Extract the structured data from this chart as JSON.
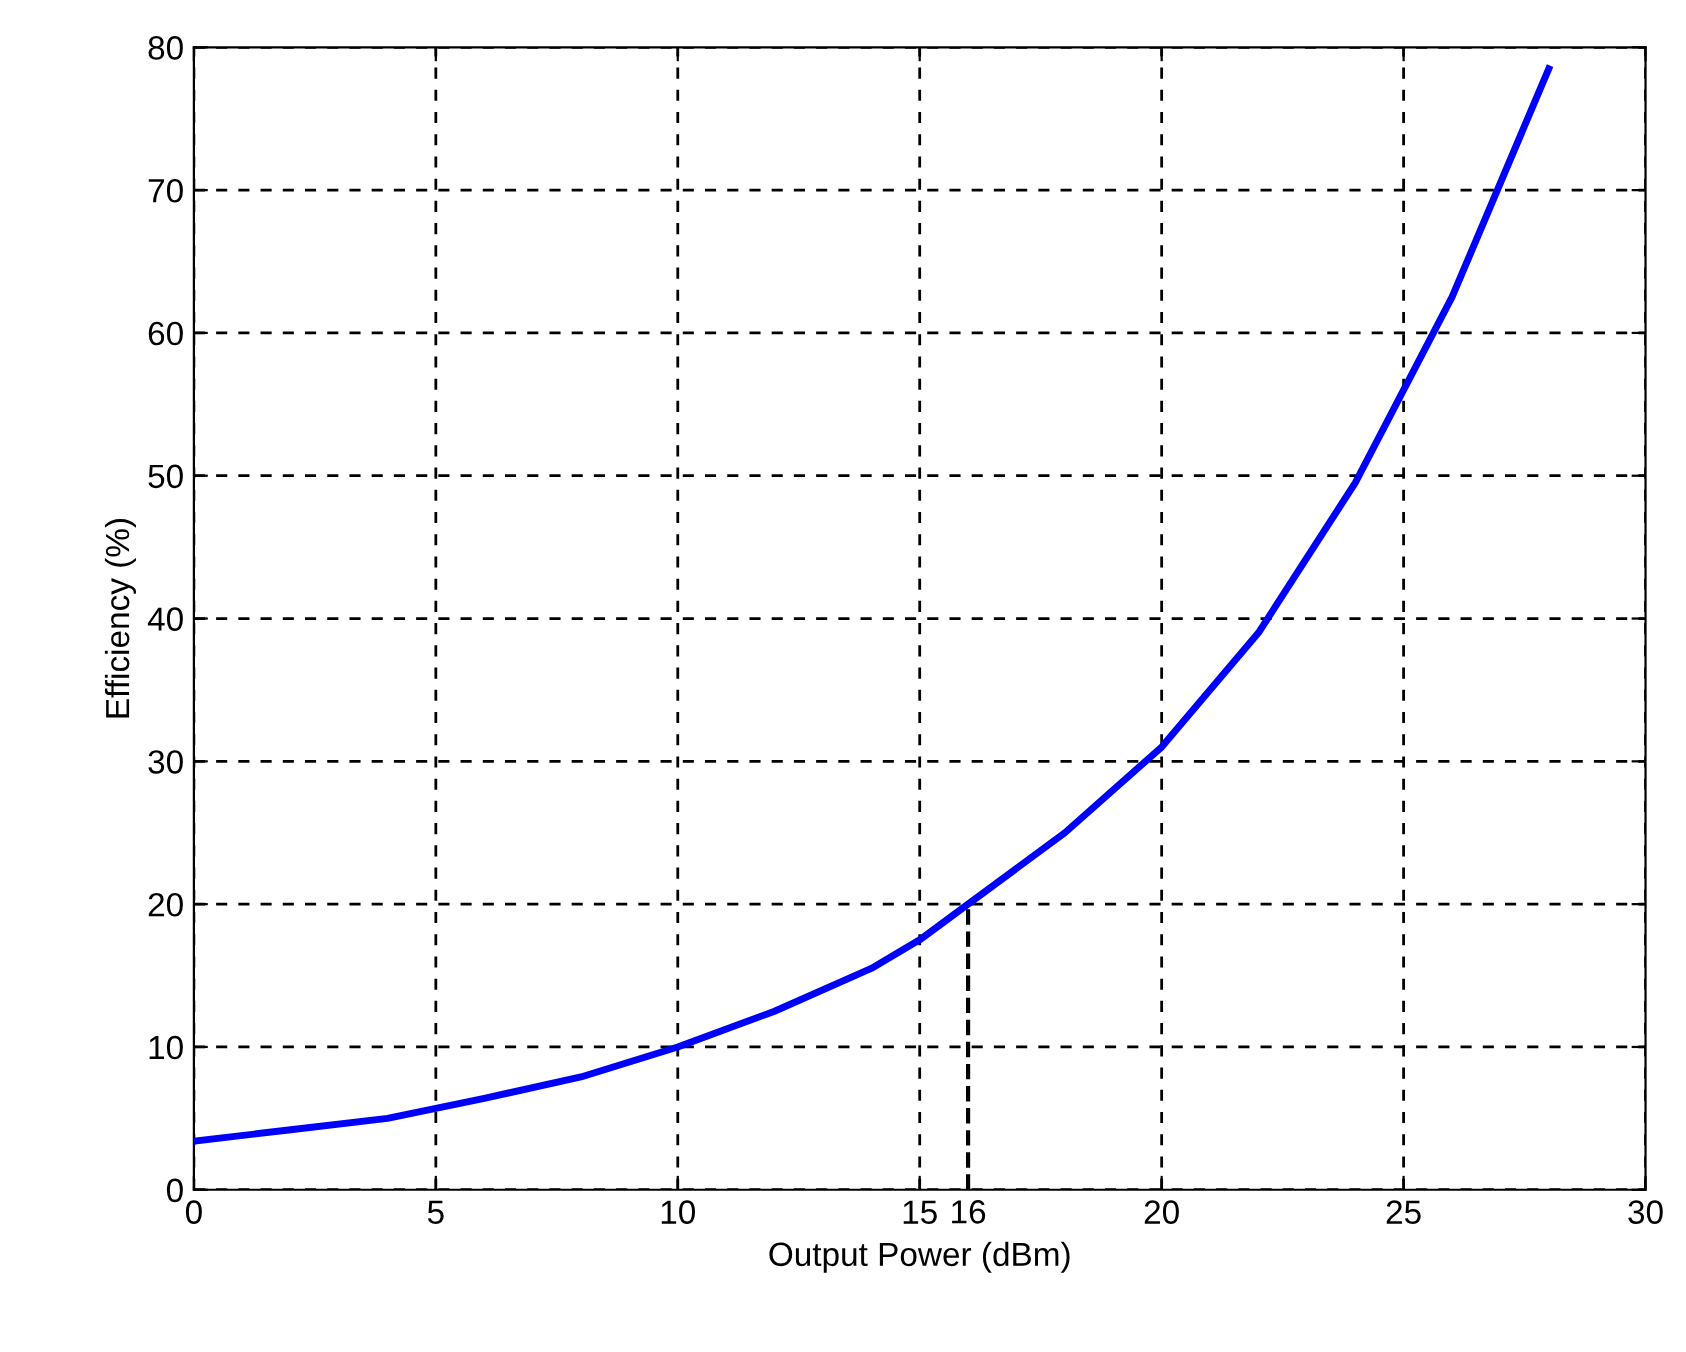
{
  "chart_data": {
    "type": "line",
    "xlabel": "Output Power (dBm)",
    "ylabel": "Efficiency (%)",
    "xlim": [
      0,
      30
    ],
    "ylim": [
      0,
      80
    ],
    "xticks": [
      0,
      5,
      10,
      15,
      {
        "value": 16,
        "label": "16"
      },
      20,
      25,
      30
    ],
    "yticks": [
      0,
      10,
      20,
      30,
      40,
      50,
      60,
      70,
      80
    ],
    "grid": true,
    "series": [
      {
        "color": "#0000ff",
        "x": [
          0,
          2,
          4,
          6,
          8,
          10,
          12,
          14,
          15,
          16,
          18,
          20,
          22,
          24,
          26,
          28
        ],
        "values": [
          3.4,
          4.2,
          5.0,
          6.4,
          7.9,
          10,
          12.5,
          15.5,
          17.5,
          20,
          25,
          31,
          39,
          49.5,
          62.5,
          78.5
        ]
      },
      {
        "color": "#000000",
        "line_style": "dashed",
        "x": [
          16,
          16
        ],
        "values": [
          0,
          20
        ]
      }
    ]
  }
}
